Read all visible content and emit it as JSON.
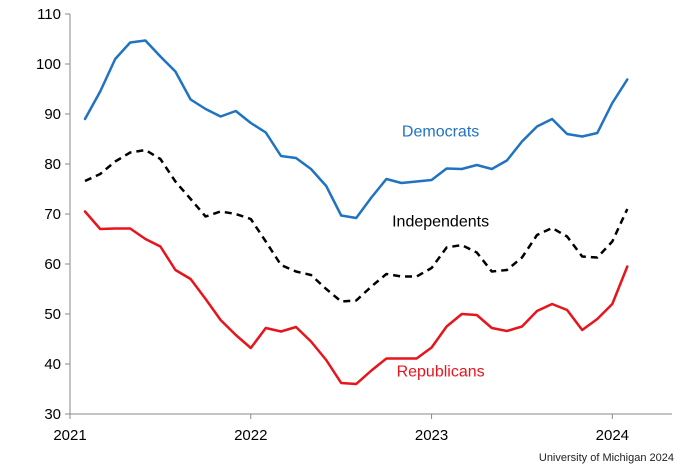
{
  "chart_data": {
    "type": "line",
    "title": "",
    "xlabel": "",
    "ylabel": "",
    "ylim": [
      30,
      110
    ],
    "yticks": [
      30,
      40,
      50,
      60,
      70,
      80,
      90,
      100,
      110
    ],
    "xlim": [
      2021.0,
      2024.33
    ],
    "xticks": [
      {
        "value": 2021,
        "label": "2021"
      },
      {
        "value": 2022,
        "label": "2022"
      },
      {
        "value": 2023,
        "label": "2023"
      },
      {
        "value": 2024,
        "label": "2024"
      }
    ],
    "grid": false,
    "series": [
      {
        "name": "Democrats",
        "color": "#1F73C1",
        "dash": "solid",
        "x": [
          2021.083,
          2021.167,
          2021.25,
          2021.333,
          2021.417,
          2021.5,
          2021.583,
          2021.667,
          2021.75,
          2021.833,
          2021.917,
          2022.0,
          2022.083,
          2022.167,
          2022.25,
          2022.333,
          2022.417,
          2022.5,
          2022.583,
          2022.667,
          2022.75,
          2022.833,
          2022.917,
          2023.0,
          2023.083,
          2023.167,
          2023.25,
          2023.333,
          2023.417,
          2023.5,
          2023.583,
          2023.667,
          2023.75,
          2023.833,
          2023.917,
          2024.0,
          2024.083
        ],
        "values": [
          89.0,
          94.5,
          101.0,
          104.3,
          104.7,
          101.5,
          98.5,
          92.9,
          91.0,
          89.5,
          90.6,
          88.2,
          86.3,
          81.6,
          81.2,
          79.0,
          75.6,
          69.7,
          69.2,
          73.3,
          77.0,
          76.2,
          76.5,
          76.8,
          79.1,
          79.0,
          79.8,
          79.0,
          80.7,
          84.5,
          87.5,
          89.0,
          86.0,
          85.5,
          86.2,
          92.2,
          96.9
        ]
      },
      {
        "name": "Independents",
        "color": "#000000",
        "dash": "dashed",
        "x": [
          2021.083,
          2021.167,
          2021.25,
          2021.333,
          2021.417,
          2021.5,
          2021.583,
          2021.667,
          2021.75,
          2021.833,
          2021.917,
          2022.0,
          2022.083,
          2022.167,
          2022.25,
          2022.333,
          2022.417,
          2022.5,
          2022.583,
          2022.667,
          2022.75,
          2022.833,
          2022.917,
          2023.0,
          2023.083,
          2023.167,
          2023.25,
          2023.333,
          2023.417,
          2023.5,
          2023.583,
          2023.667,
          2023.75,
          2023.833,
          2023.917,
          2024.0,
          2024.083
        ],
        "values": [
          76.6,
          78.0,
          80.5,
          82.3,
          82.8,
          81.0,
          76.5,
          73.0,
          69.5,
          70.5,
          70.0,
          69.0,
          64.5,
          59.8,
          58.5,
          57.8,
          55.0,
          52.5,
          52.7,
          55.5,
          58.0,
          57.5,
          57.5,
          59.2,
          63.3,
          63.8,
          62.3,
          58.5,
          58.8,
          61.3,
          65.8,
          67.2,
          65.5,
          61.5,
          61.3,
          64.5,
          71.0
        ]
      },
      {
        "name": "Republicans",
        "color": "#E8141B",
        "dash": "solid",
        "x": [
          2021.083,
          2021.167,
          2021.25,
          2021.333,
          2021.417,
          2021.5,
          2021.583,
          2021.667,
          2021.75,
          2021.833,
          2021.917,
          2022.0,
          2022.083,
          2022.167,
          2022.25,
          2022.333,
          2022.417,
          2022.5,
          2022.583,
          2022.667,
          2022.75,
          2022.833,
          2022.917,
          2023.0,
          2023.083,
          2023.167,
          2023.25,
          2023.333,
          2023.417,
          2023.5,
          2023.583,
          2023.667,
          2023.75,
          2023.833,
          2023.917,
          2024.0,
          2024.083
        ],
        "values": [
          70.5,
          67.0,
          67.1,
          67.1,
          65.0,
          63.5,
          58.8,
          57.0,
          53.0,
          48.8,
          45.8,
          43.2,
          47.2,
          46.5,
          47.4,
          44.5,
          40.8,
          36.2,
          36.0,
          38.7,
          41.1,
          41.1,
          41.1,
          43.3,
          47.5,
          50.0,
          49.8,
          47.2,
          46.6,
          47.5,
          50.6,
          52.0,
          50.8,
          46.8,
          49.0,
          52.0,
          59.5
        ]
      }
    ],
    "annotations": [
      {
        "text": "Democrats",
        "x": 2023.05,
        "y": 85.5,
        "color": "#1F73C1"
      },
      {
        "text": "Independents",
        "x": 2023.05,
        "y": 67.5,
        "color": "#000000"
      },
      {
        "text": "Republicans",
        "x": 2023.05,
        "y": 37.5,
        "color": "#E8141B"
      }
    ]
  },
  "source": "University of Michigan 2024"
}
